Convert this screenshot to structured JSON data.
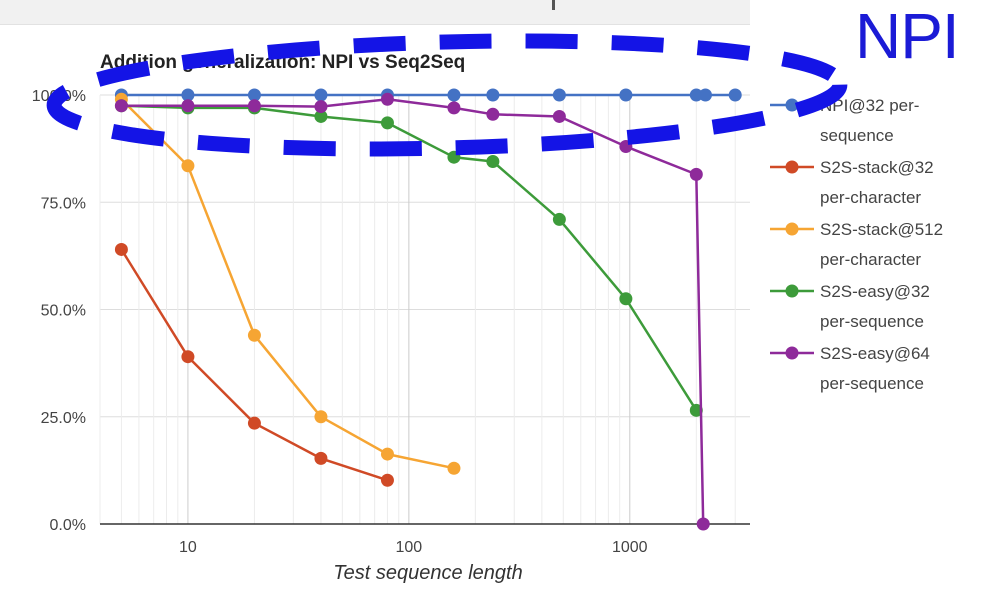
{
  "callout": {
    "text": "NPI"
  },
  "chart_data": {
    "type": "line",
    "title": "Addition generalization: NPI vs Seq2Seq",
    "xlabel": "Test sequence length",
    "ylabel": "",
    "xscale": "log",
    "xlim": [
      4,
      3500
    ],
    "ylim": [
      0,
      100
    ],
    "xticks": [
      10,
      100,
      1000
    ],
    "xtick_labels": [
      "10",
      "100",
      "1000"
    ],
    "yticks": [
      0,
      25,
      50,
      75,
      100
    ],
    "ytick_labels": [
      "0.0%",
      "25.0%",
      "50.0%",
      "75.0%",
      "100.0%"
    ],
    "grid": true,
    "legend_position": "right",
    "series": [
      {
        "name": "NPI@32 per-sequence",
        "legend_lines": [
          "NPI@32 per-",
          "sequence"
        ],
        "color": "#4472c4",
        "x": [
          5,
          10,
          20,
          40,
          80,
          160,
          240,
          480,
          960,
          2000,
          2200,
          3000
        ],
        "y": [
          100,
          100,
          100,
          100,
          100,
          100,
          100,
          100,
          100,
          100,
          100,
          100
        ]
      },
      {
        "name": "S2S-stack@32 per-character",
        "legend_lines": [
          "S2S-stack@32",
          "per-character"
        ],
        "color": "#d04a26",
        "x": [
          5,
          10,
          20,
          40,
          80
        ],
        "y": [
          64,
          39,
          23.5,
          15.3,
          10.2
        ]
      },
      {
        "name": "S2S-stack@512 per-character",
        "legend_lines": [
          "S2S-stack@512",
          "per-character"
        ],
        "color": "#f6a533",
        "x": [
          5,
          10,
          20,
          40,
          80,
          160
        ],
        "y": [
          99,
          83.5,
          44,
          25,
          16.3,
          13
        ]
      },
      {
        "name": "S2S-easy@32 per-sequence",
        "legend_lines": [
          "S2S-easy@32",
          "per-sequence"
        ],
        "color": "#3d9b3a",
        "x": [
          5,
          10,
          20,
          40,
          80,
          160,
          240,
          480,
          960,
          2000
        ],
        "y": [
          97.5,
          97,
          97,
          95,
          93.5,
          85.5,
          84.5,
          71,
          52.5,
          26.5
        ]
      },
      {
        "name": "S2S-easy@64 per-sequence",
        "legend_lines": [
          "S2S-easy@64",
          "per-sequence"
        ],
        "color": "#8e2a9a",
        "x": [
          5,
          10,
          20,
          40,
          80,
          160,
          240,
          480,
          960,
          2000,
          2150
        ],
        "y": [
          97.5,
          97.5,
          97.5,
          97.3,
          99,
          97,
          95.5,
          95,
          88,
          81.5,
          0
        ]
      }
    ]
  }
}
